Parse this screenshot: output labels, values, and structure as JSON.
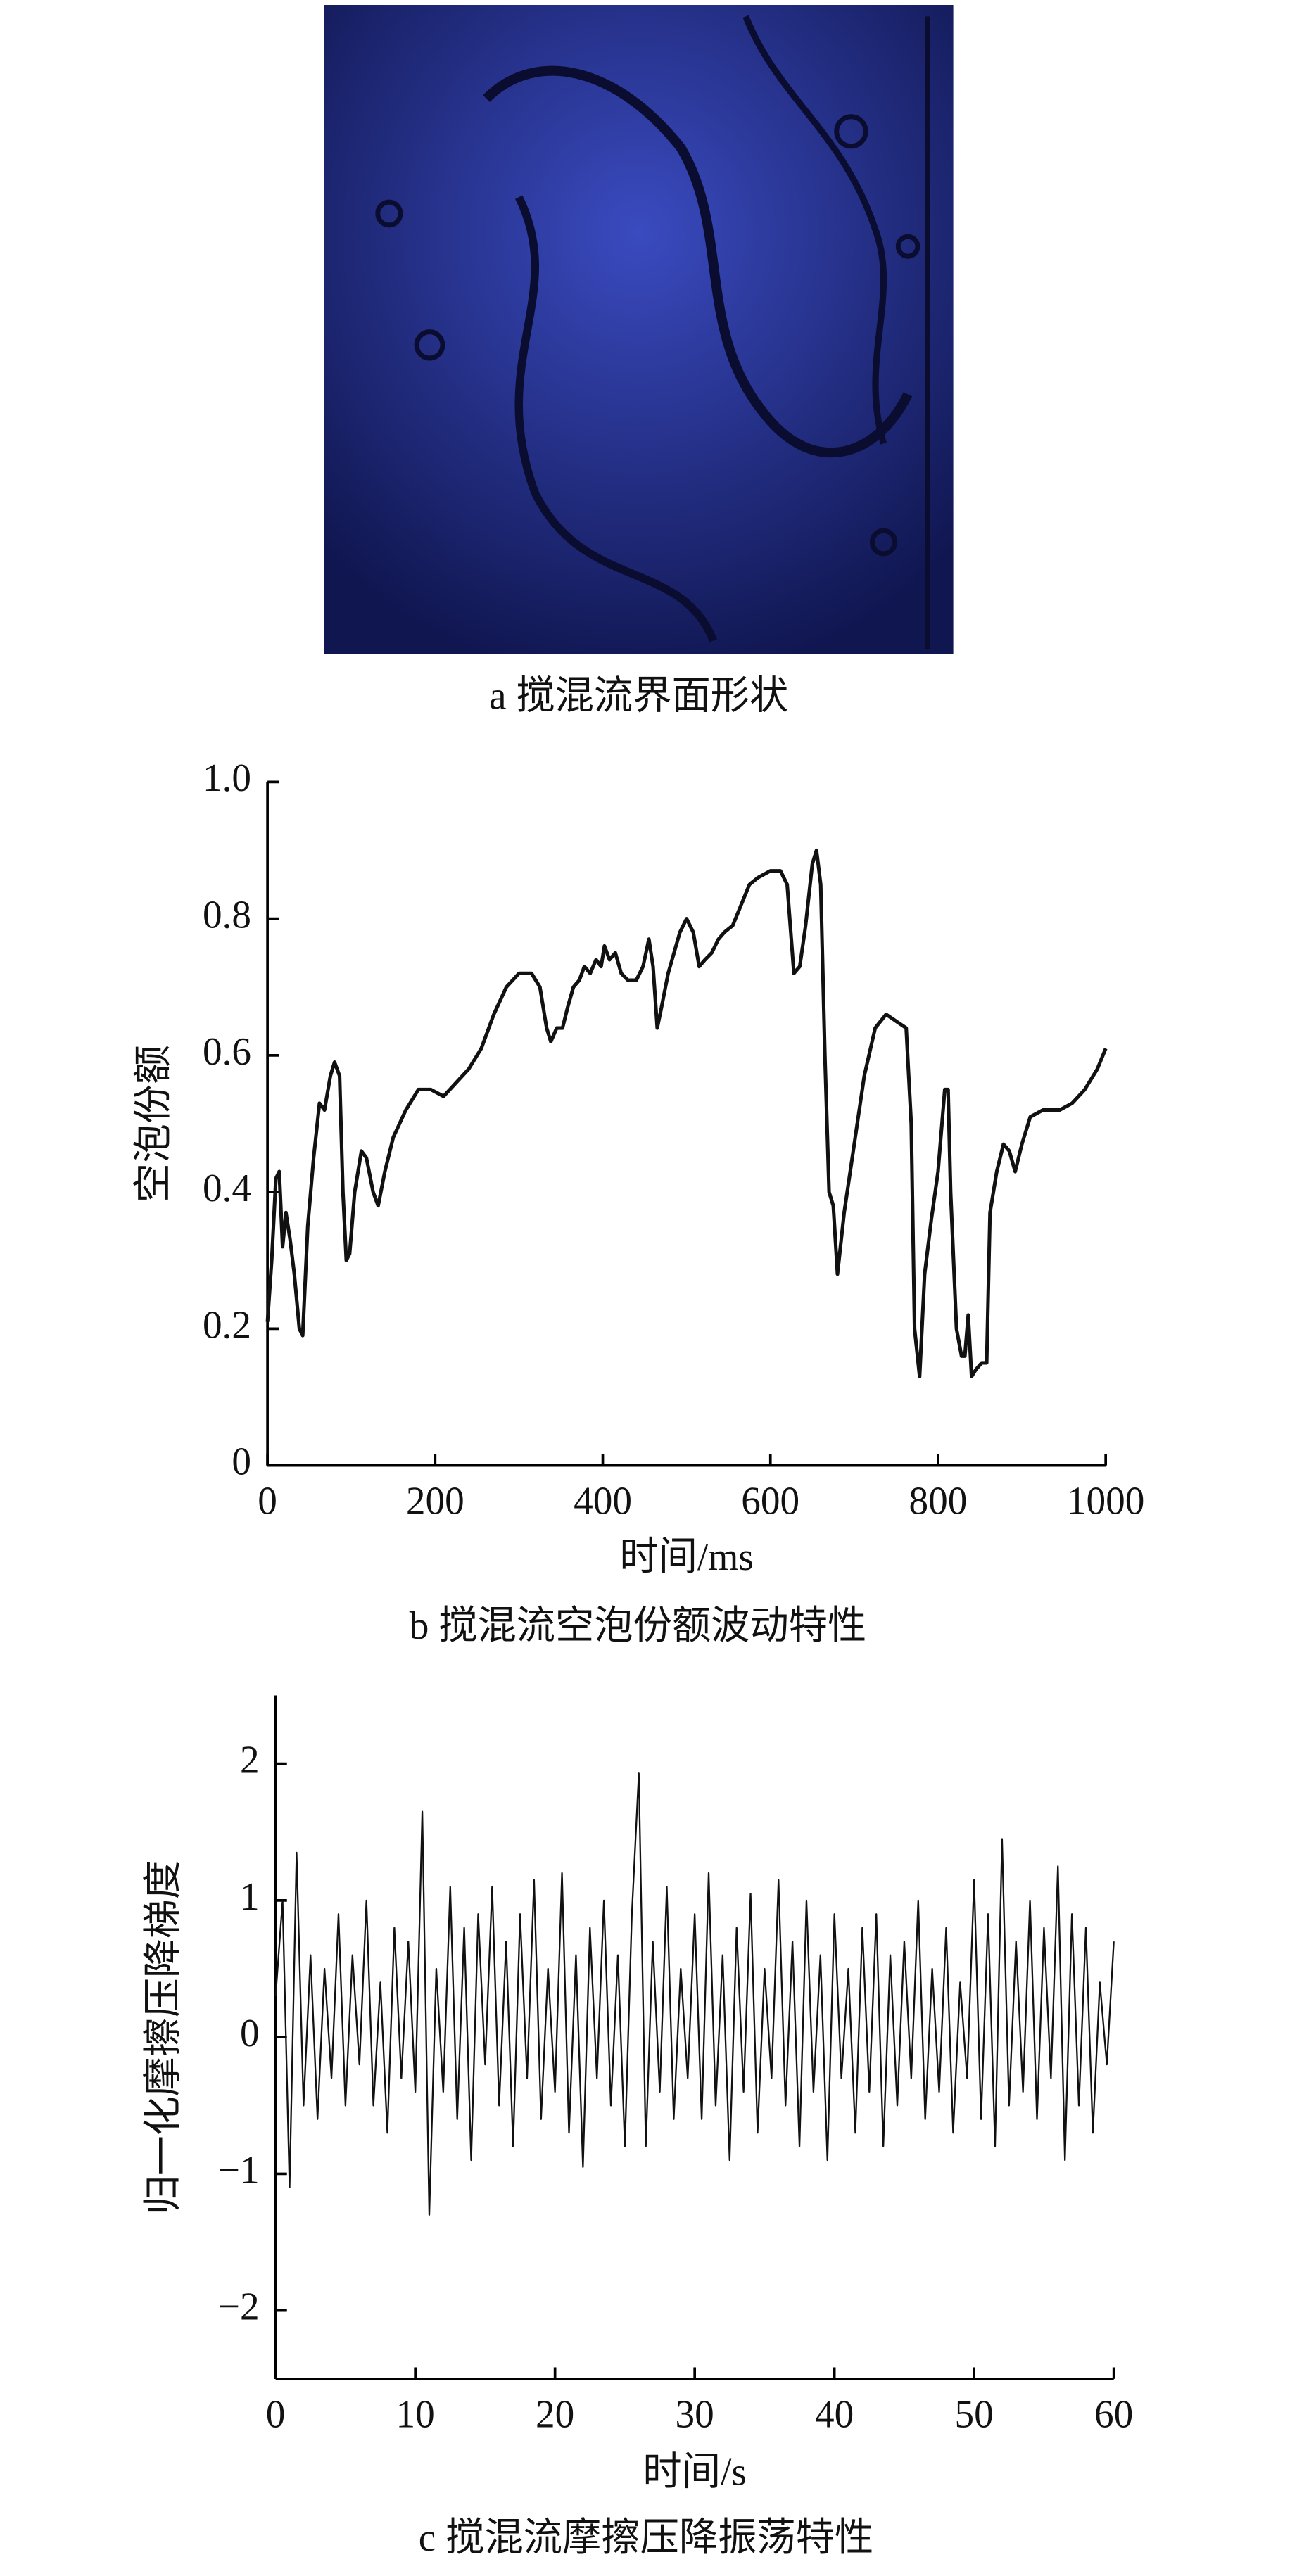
{
  "image": {
    "caption": "a 搅混流界面形状"
  },
  "chart_data": [
    {
      "type": "line",
      "caption": "b 搅混流空泡份额波动特性",
      "xlabel": "时间/ms",
      "ylabel": "空泡份额",
      "color": "#111111",
      "xlim": [
        0,
        1000
      ],
      "ylim": [
        0,
        1
      ],
      "xticks": [
        0,
        200,
        400,
        600,
        800,
        1000
      ],
      "yticks": [
        0,
        0.2,
        0.4,
        0.6,
        0.8,
        {
          "value": 1,
          "label": "1.0"
        }
      ],
      "x": [
        0,
        5,
        10,
        14,
        18,
        22,
        27,
        32,
        38,
        42,
        48,
        55,
        62,
        68,
        75,
        80,
        86,
        90,
        94,
        98,
        104,
        112,
        118,
        126,
        132,
        140,
        150,
        165,
        180,
        195,
        210,
        225,
        240,
        255,
        270,
        285,
        300,
        315,
        325,
        333,
        338,
        345,
        352,
        358,
        365,
        372,
        378,
        385,
        392,
        398,
        402,
        408,
        415,
        422,
        430,
        440,
        448,
        455,
        460,
        465,
        470,
        478,
        485,
        492,
        500,
        508,
        515,
        522,
        530,
        538,
        545,
        555,
        565,
        575,
        585,
        600,
        612,
        620,
        628,
        635,
        642,
        650,
        655,
        660,
        665,
        670,
        675,
        680,
        688,
        700,
        712,
        725,
        738,
        750,
        762,
        768,
        772,
        778,
        784,
        792,
        800,
        808,
        812,
        815,
        822,
        828,
        832,
        836,
        840,
        845,
        852,
        858,
        862,
        870,
        878,
        885,
        892,
        900,
        910,
        925,
        945,
        960,
        975,
        990,
        1000
      ],
      "values": [
        0.21,
        0.3,
        0.42,
        0.43,
        0.32,
        0.37,
        0.33,
        0.28,
        0.2,
        0.19,
        0.35,
        0.45,
        0.53,
        0.52,
        0.57,
        0.59,
        0.57,
        0.4,
        0.3,
        0.31,
        0.4,
        0.46,
        0.45,
        0.4,
        0.38,
        0.43,
        0.48,
        0.52,
        0.55,
        0.55,
        0.54,
        0.56,
        0.58,
        0.61,
        0.66,
        0.7,
        0.72,
        0.72,
        0.7,
        0.64,
        0.62,
        0.64,
        0.64,
        0.67,
        0.7,
        0.71,
        0.73,
        0.72,
        0.74,
        0.73,
        0.76,
        0.74,
        0.75,
        0.72,
        0.71,
        0.71,
        0.73,
        0.77,
        0.73,
        0.64,
        0.67,
        0.72,
        0.75,
        0.78,
        0.8,
        0.78,
        0.73,
        0.74,
        0.75,
        0.77,
        0.78,
        0.79,
        0.82,
        0.85,
        0.86,
        0.87,
        0.87,
        0.85,
        0.72,
        0.73,
        0.79,
        0.88,
        0.9,
        0.85,
        0.6,
        0.4,
        0.38,
        0.28,
        0.37,
        0.47,
        0.57,
        0.64,
        0.66,
        0.65,
        0.64,
        0.5,
        0.2,
        0.13,
        0.28,
        0.36,
        0.43,
        0.55,
        0.55,
        0.4,
        0.2,
        0.16,
        0.16,
        0.22,
        0.13,
        0.14,
        0.15,
        0.15,
        0.37,
        0.43,
        0.47,
        0.46,
        0.43,
        0.47,
        0.51,
        0.52,
        0.52,
        0.53,
        0.55,
        0.58,
        0.61
      ]
    },
    {
      "type": "line",
      "caption": "c 搅混流摩擦压降振荡特性",
      "xlabel": "时间/s",
      "ylabel": "归一化摩擦压降梯度",
      "color": "#111111",
      "xlim": [
        0,
        60
      ],
      "ylim": [
        -2.5,
        2.5
      ],
      "xticks": [
        0,
        10,
        20,
        30,
        40,
        50,
        60
      ],
      "yticks": [
        {
          "value": -2,
          "label": "−2"
        },
        {
          "value": -1,
          "label": "−1"
        },
        0,
        1,
        2
      ],
      "x": [
        0,
        0.5,
        1,
        1.5,
        2,
        2.5,
        3,
        3.5,
        4,
        4.5,
        5,
        5.5,
        6,
        6.5,
        7,
        7.5,
        8,
        8.5,
        9,
        9.5,
        10,
        10.5,
        11,
        11.5,
        12,
        12.5,
        13,
        13.5,
        14,
        14.5,
        15,
        15.5,
        16,
        16.5,
        17,
        17.5,
        18,
        18.5,
        19,
        19.5,
        20,
        20.5,
        21,
        21.5,
        22,
        22.5,
        23,
        23.5,
        24,
        24.5,
        25,
        25.5,
        26,
        26.5,
        27,
        27.5,
        28,
        28.5,
        29,
        29.5,
        30,
        30.5,
        31,
        31.5,
        32,
        32.5,
        33,
        33.5,
        34,
        34.5,
        35,
        35.5,
        36,
        36.5,
        37,
        37.5,
        38,
        38.5,
        39,
        39.5,
        40,
        40.5,
        41,
        41.5,
        42,
        42.5,
        43,
        43.5,
        44,
        44.5,
        45,
        45.5,
        46,
        46.5,
        47,
        47.5,
        48,
        48.5,
        49,
        49.5,
        50,
        50.5,
        51,
        51.5,
        52,
        52.5,
        53,
        53.5,
        54,
        54.5,
        55,
        55.5,
        56,
        56.5,
        57,
        57.5,
        58,
        58.5,
        59,
        59.5,
        60
      ],
      "values": [
        0.3,
        1.0,
        -1.1,
        1.35,
        -0.5,
        0.6,
        -0.6,
        0.5,
        -0.3,
        0.9,
        -0.5,
        0.6,
        -0.2,
        1.0,
        -0.5,
        0.4,
        -0.7,
        0.8,
        -0.3,
        0.7,
        -0.4,
        1.65,
        -1.3,
        0.5,
        -0.4,
        1.1,
        -0.6,
        0.8,
        -0.9,
        0.9,
        -0.2,
        1.1,
        -0.5,
        0.7,
        -0.8,
        0.9,
        -0.3,
        1.15,
        -0.6,
        0.5,
        -0.4,
        1.2,
        -0.7,
        0.6,
        -0.95,
        0.8,
        -0.3,
        1.0,
        -0.5,
        0.6,
        -0.8,
        0.9,
        1.93,
        -0.8,
        0.7,
        -0.4,
        1.1,
        -0.6,
        0.5,
        -0.3,
        0.9,
        -0.6,
        1.2,
        -0.5,
        0.6,
        -0.9,
        0.8,
        -0.4,
        1.05,
        -0.7,
        0.5,
        -0.3,
        1.15,
        -0.5,
        0.7,
        -0.8,
        1.0,
        -0.4,
        0.6,
        -0.9,
        0.9,
        -0.3,
        0.5,
        -0.7,
        0.8,
        -0.4,
        0.9,
        -0.8,
        0.6,
        -0.5,
        0.7,
        -0.3,
        1.0,
        -0.6,
        0.5,
        -0.4,
        0.8,
        -0.7,
        0.4,
        -0.3,
        1.15,
        -0.6,
        0.9,
        -0.8,
        1.45,
        -0.5,
        0.7,
        -0.4,
        1.0,
        -0.6,
        0.8,
        -0.3,
        1.25,
        -0.9,
        0.9,
        -0.5,
        0.8,
        -0.7,
        0.4,
        -0.2,
        0.7
      ]
    }
  ]
}
